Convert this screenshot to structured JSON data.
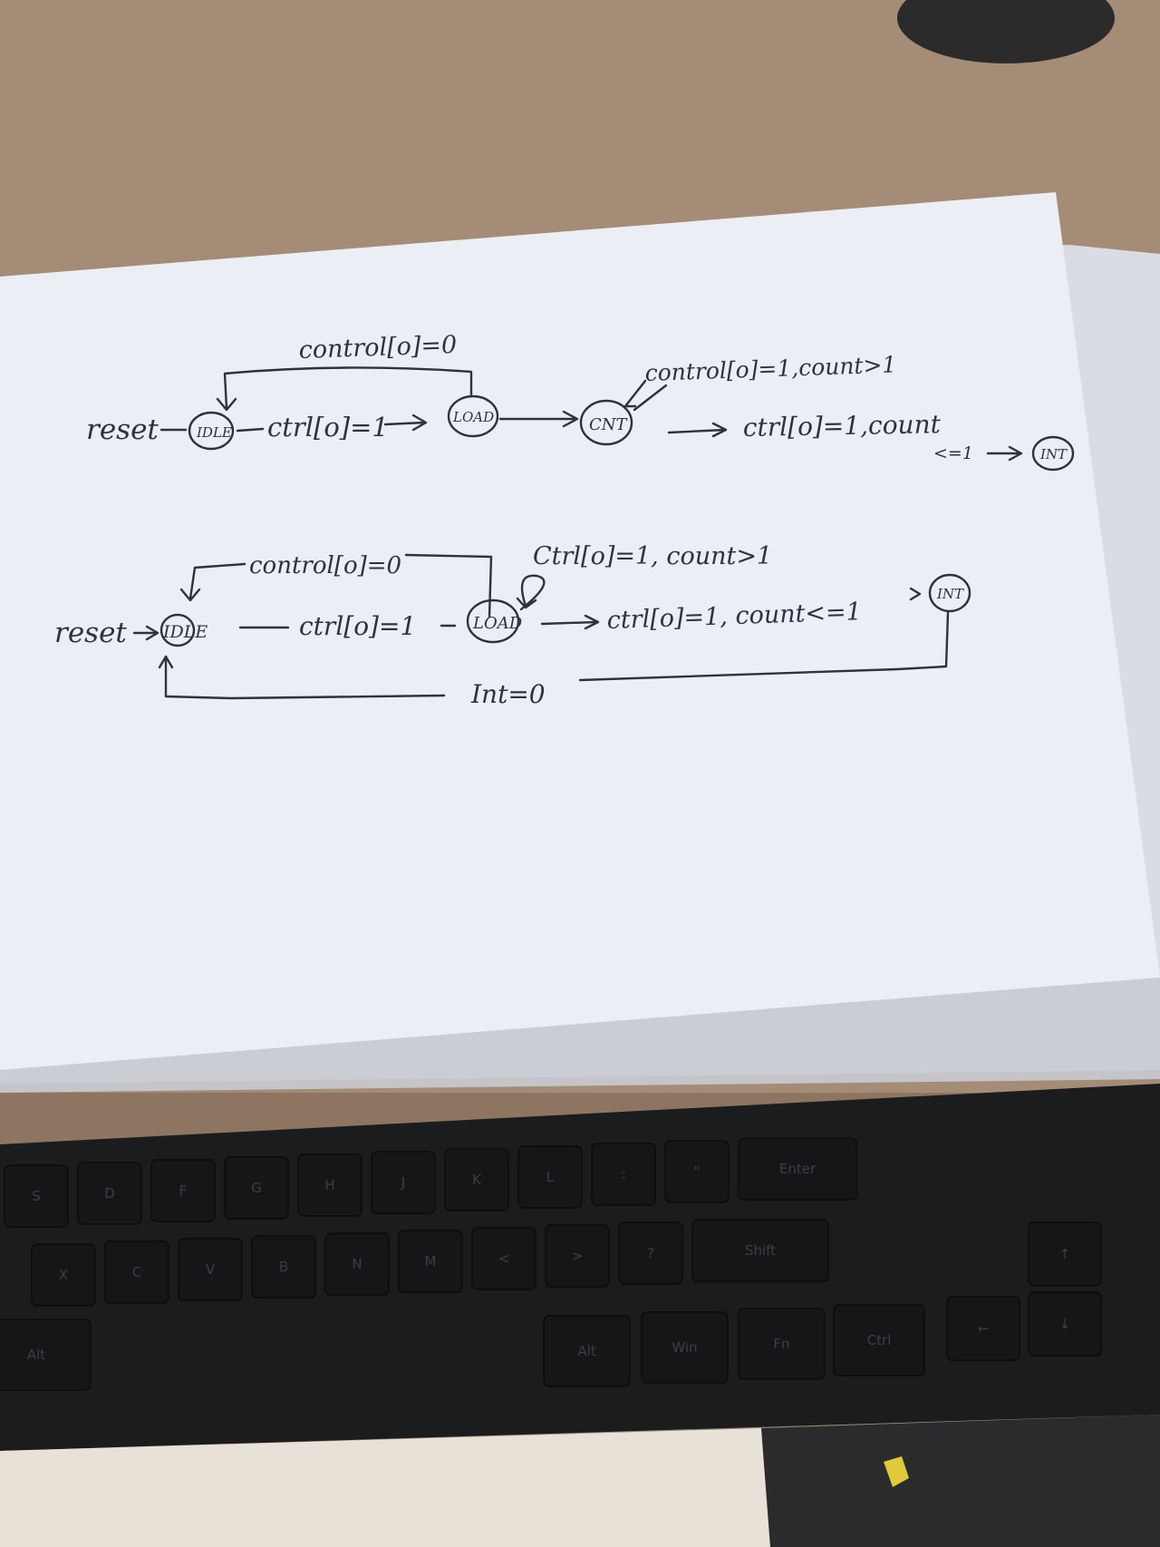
{
  "diagram_top": {
    "loop_label": "control[o]=0",
    "reset_label": "reset",
    "state_idle": "IDLE",
    "edge_idle_load": "ctrl[o]=1",
    "state_load": "LOAD",
    "state_cnt": "CNT",
    "self_loop_label": "control[o]=1,count>1",
    "edge_cnt_int_line1": "ctrl[o]=1,count",
    "edge_cnt_int_line2": "<=1",
    "state_int": "INT"
  },
  "diagram_bottom": {
    "loop_label": "control[o]=0",
    "reset_label": "reset",
    "state_idle": "IDLE",
    "edge_idle_load": "ctrl[o]=1",
    "state_load": "LOAD",
    "self_loop_label": "Ctrl[o]=1, count>1",
    "edge_load_int": "ctrl[o]=1, count<=1",
    "state_int": "INT",
    "return_label": "Int=0"
  },
  "keyboard": {
    "row1": [
      "S",
      "D",
      "F",
      "G",
      "H",
      "J",
      "K",
      "L",
      ":",
      "\"",
      "Enter"
    ],
    "row2": [
      "X",
      "C",
      "V",
      "B",
      "N",
      "M",
      "<",
      ">",
      "?",
      "Shift"
    ],
    "row3": [
      "Alt",
      "Alt",
      "Win",
      "Fn",
      "Ctrl"
    ],
    "arrows": [
      "↑",
      "←",
      "↓"
    ]
  },
  "colors": {
    "ink": "#2d3140",
    "paper": "#eef0f6",
    "desk": "#a48b76",
    "keyboard": "#1a1b1d"
  }
}
